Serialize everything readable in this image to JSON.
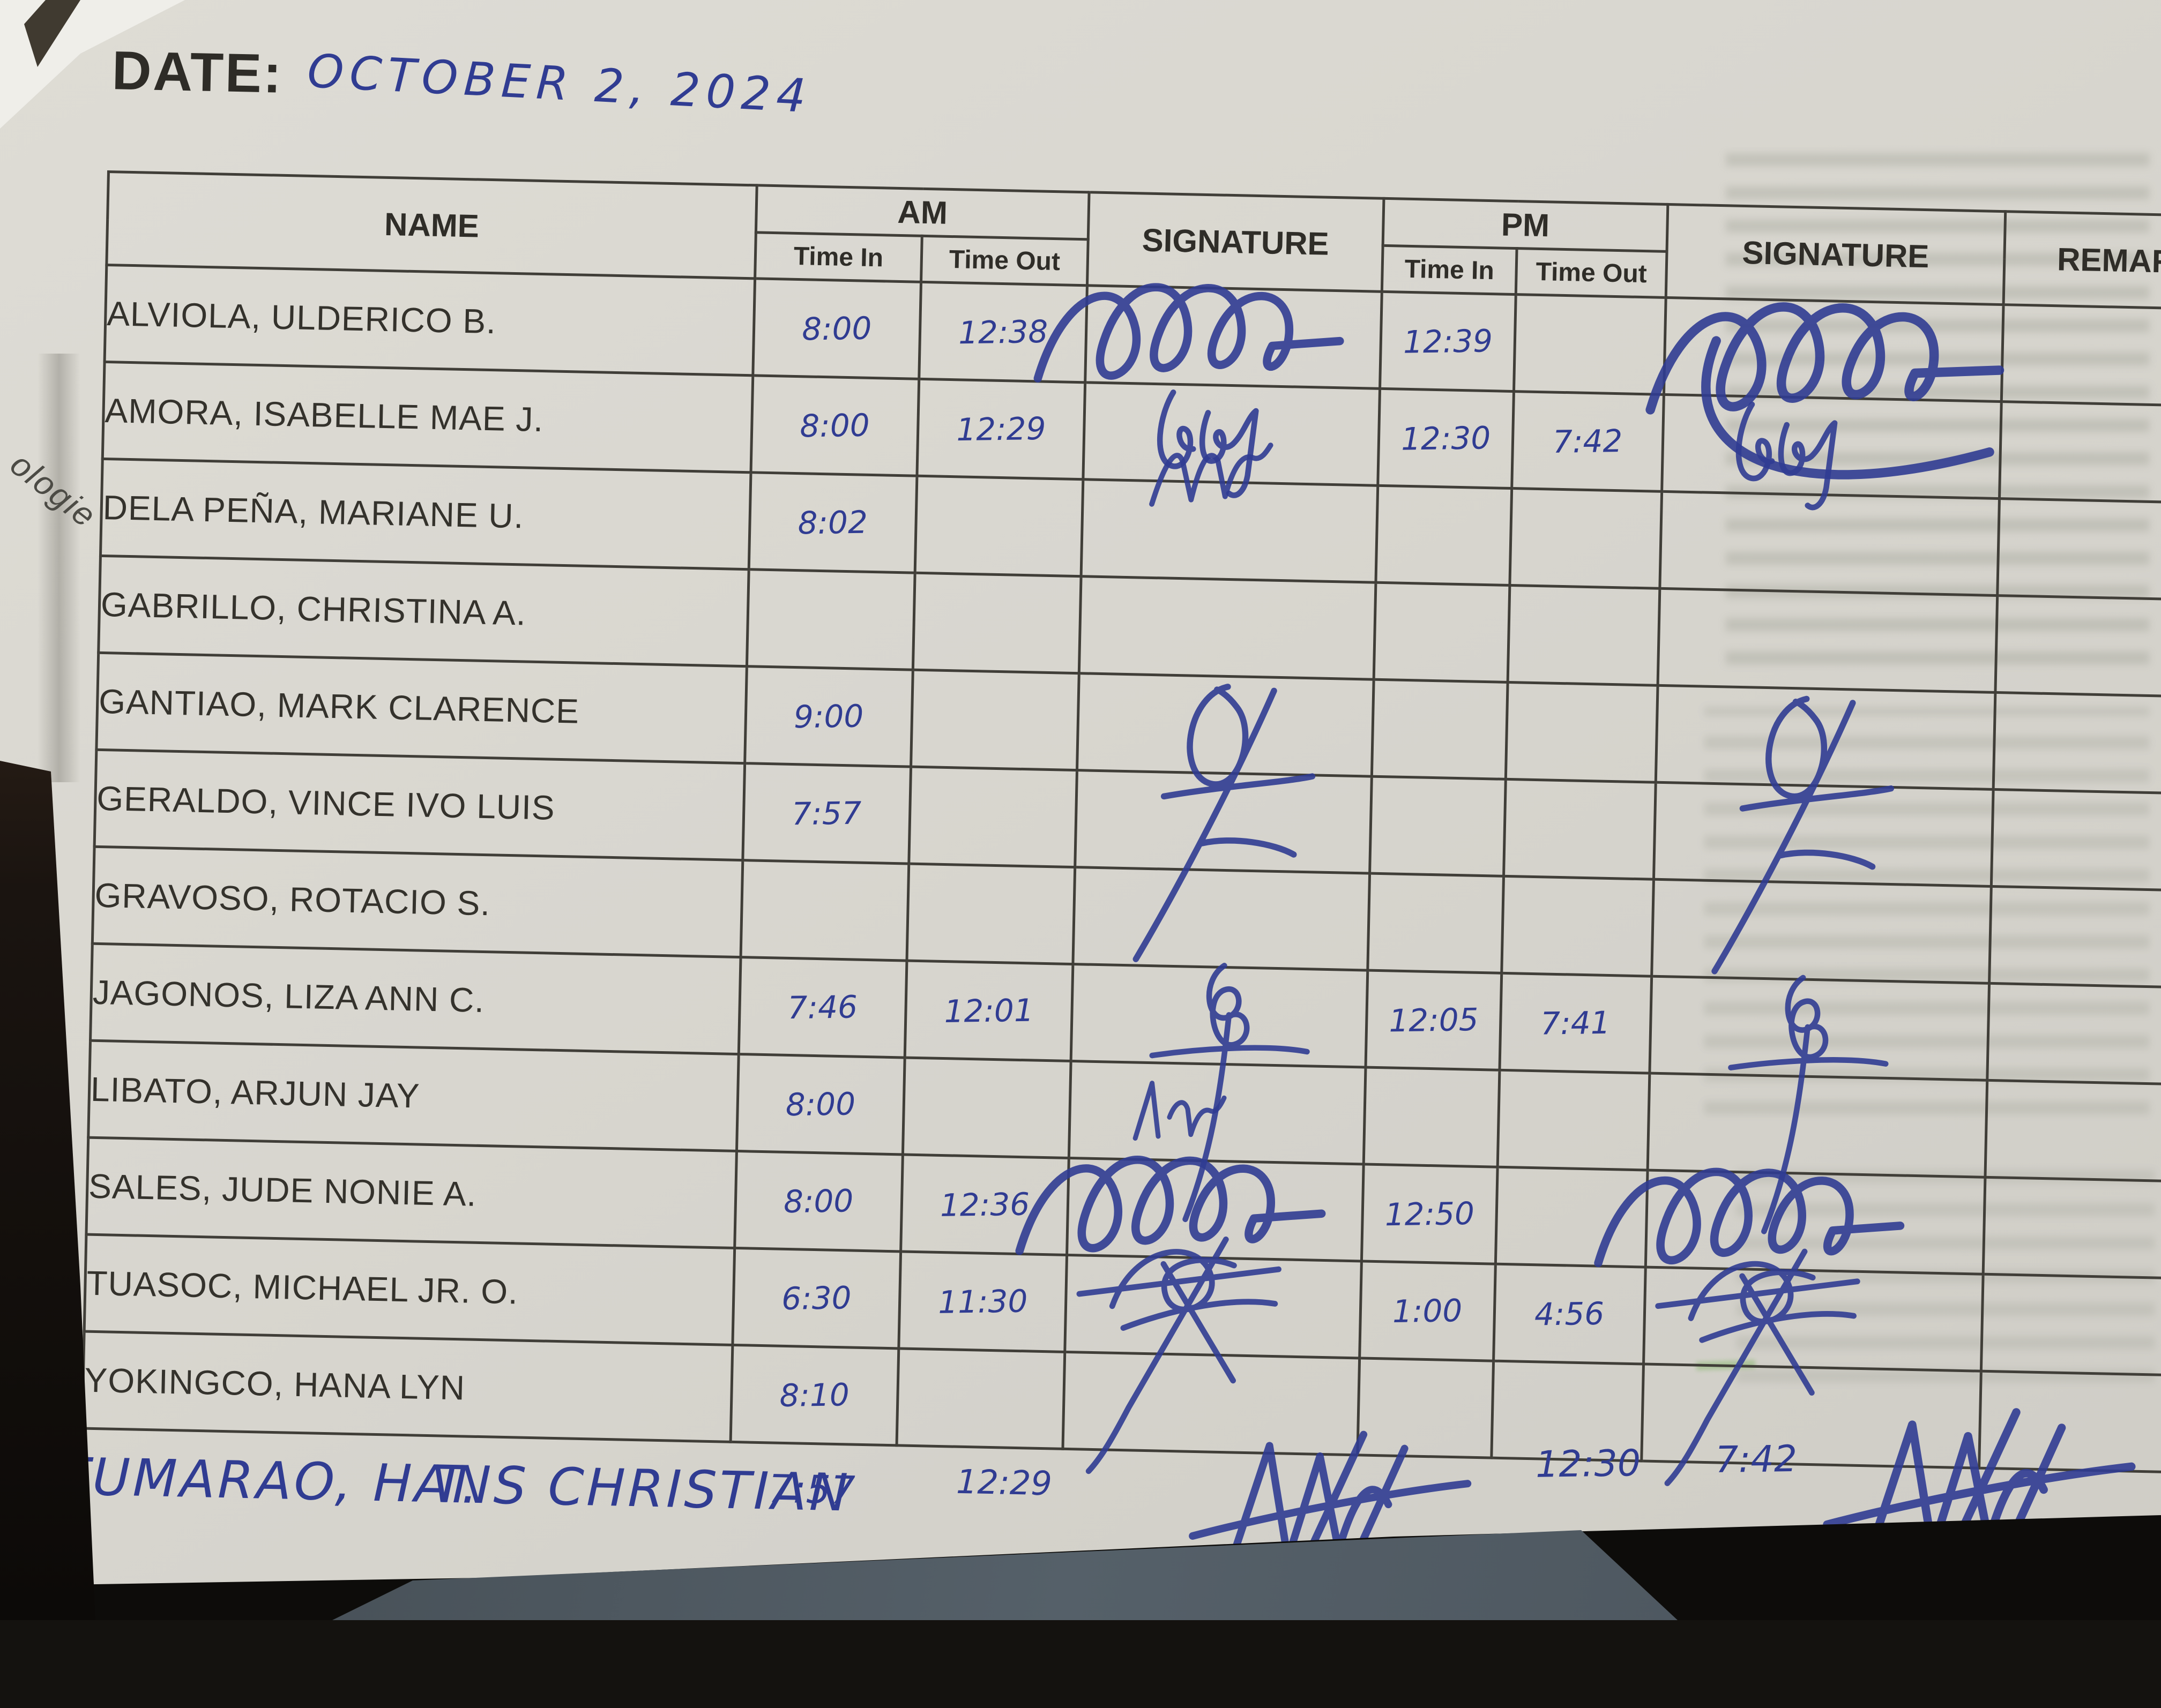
{
  "ink_color": "#303c92",
  "line_color": "#403e38",
  "paper_color": "#d8d6cf",
  "date": {
    "label": "DATE:",
    "value": "OCTOBER 2, 2024"
  },
  "side_text": "ologie",
  "table": {
    "headers": {
      "name": "NAME",
      "am": "AM",
      "pm": "PM",
      "signature_am": "SIGNATURE",
      "signature_pm": "SIGNATURE",
      "remarks": "REMARKS",
      "time_in": "Time In",
      "time_out": "Time Out"
    },
    "rows": [
      {
        "name": "ALVIOLA, ULDERICO B.",
        "am_in": "8:00",
        "am_out": "12:38",
        "sig_am": "loops_large",
        "pm_in": "12:39",
        "pm_out": "",
        "sig_pm": "loops_tail",
        "remarks": ""
      },
      {
        "name": "AMORA, ISABELLE MAE J.",
        "am_in": "8:00",
        "am_out": "12:29",
        "sig_am": "initials",
        "pm_in": "12:30",
        "pm_out": "7:42",
        "sig_pm": "initials",
        "remarks": ""
      },
      {
        "name": "DELA PEÑA, MARIANE U.",
        "am_in": "8:02",
        "am_out": "",
        "sig_am": "zigzag",
        "pm_in": "",
        "pm_out": "",
        "sig_pm": "",
        "remarks": ""
      },
      {
        "name": "GABRILLO, CHRISTINA A.",
        "am_in": "",
        "am_out": "",
        "sig_am": "",
        "pm_in": "",
        "pm_out": "",
        "sig_pm": "",
        "remarks": ""
      },
      {
        "name": "GANTIAO, MARK CLARENCE",
        "am_in": "9:00",
        "am_out": "",
        "sig_am": "tall_flourish",
        "pm_in": "",
        "pm_out": "",
        "sig_pm": "tall_flourish",
        "remarks": ""
      },
      {
        "name": "GERALDO, VINCE IVO LUIS",
        "am_in": "7:57",
        "am_out": "",
        "sig_am": "",
        "pm_in": "",
        "pm_out": "",
        "sig_pm": "",
        "remarks": ""
      },
      {
        "name": "GRAVOSO, ROTACIO S.",
        "am_in": "",
        "am_out": "",
        "sig_am": "",
        "pm_in": "",
        "pm_out": "",
        "sig_pm": "",
        "remarks": ""
      },
      {
        "name": "JAGONOS, LIZA ANN C.",
        "am_in": "7:46",
        "am_out": "12:01",
        "sig_am": "loop_descender",
        "pm_in": "12:05",
        "pm_out": "7:41",
        "sig_pm": "loop_descender",
        "remarks": ""
      },
      {
        "name": "LIBATO, ARJUN JAY",
        "am_in": "8:00",
        "am_out": "",
        "sig_am": "small_initials",
        "pm_in": "",
        "pm_out": "",
        "sig_pm": "",
        "remarks": ""
      },
      {
        "name": "SALES, JUDE NONIE A.",
        "am_in": "8:00",
        "am_out": "12:36",
        "sig_am": "loops_large",
        "pm_in": "12:50",
        "pm_out": "",
        "sig_pm": "loops_large",
        "remarks": ""
      },
      {
        "name": "TUASOC, MICHAEL JR. O.",
        "am_in": "6:30",
        "am_out": "11:30",
        "sig_am": "crossed",
        "pm_in": "1:00",
        "pm_out": "4:56",
        "sig_pm": "crossed",
        "remarks": ""
      },
      {
        "name": "YOKINGCO, HANA LYN",
        "am_in": "8:10",
        "am_out": "",
        "sig_am": "",
        "pm_in": "",
        "pm_out": "",
        "sig_pm": "",
        "remarks": ""
      },
      {
        "name": "TUMARAO, HANS CHRISTIAN",
        "name_line2": "T.",
        "am_in": "7:57",
        "am_out": "12:29",
        "sig_am": "sharp",
        "pm_in": "12:30",
        "pm_out": "7:42",
        "sig_pm": "sharp",
        "remarks": "",
        "handwritten": true
      }
    ]
  }
}
